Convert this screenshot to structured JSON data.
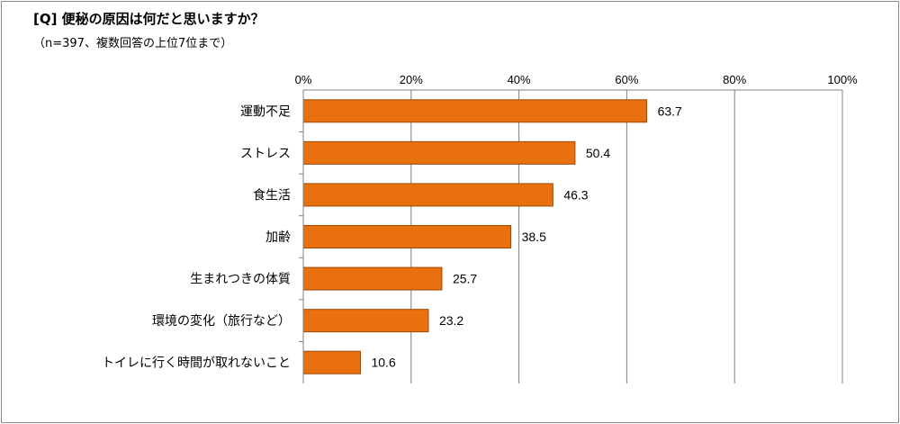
{
  "header": {
    "title": "[Q] 便秘の原因は何だと思いますか？",
    "subtitle": "（n=397、複数回答の上位7位まで）"
  },
  "colors": {
    "bar_fill": "#E8700E",
    "bar_stroke": "#9E4B0A",
    "grid": "#808080",
    "axis": "#808080"
  },
  "chart_data": {
    "type": "bar",
    "orientation": "horizontal",
    "title": "[Q] 便秘の原因は何だと思いますか？",
    "subtitle": "（n=397、複数回答の上位7位まで）",
    "categories": [
      "運動不足",
      "ストレス",
      "食生活",
      "加齢",
      "生まれつきの体質",
      "環境の変化（旅行など）",
      "トイレに行く時間が取れないこと"
    ],
    "values": [
      63.7,
      50.4,
      46.3,
      38.5,
      25.7,
      23.2,
      10.6
    ],
    "value_labels": [
      "63.7",
      "50.4",
      "46.3",
      "38.5",
      "25.7",
      "23.2",
      "10.6"
    ],
    "xlim": [
      0,
      100
    ],
    "x_ticks": [
      0,
      20,
      40,
      60,
      80,
      100
    ],
    "x_tick_labels": [
      "0%",
      "20%",
      "40%",
      "60%",
      "80%",
      "100%"
    ],
    "xlabel": "",
    "ylabel": "",
    "grid": true,
    "legend": "none"
  }
}
